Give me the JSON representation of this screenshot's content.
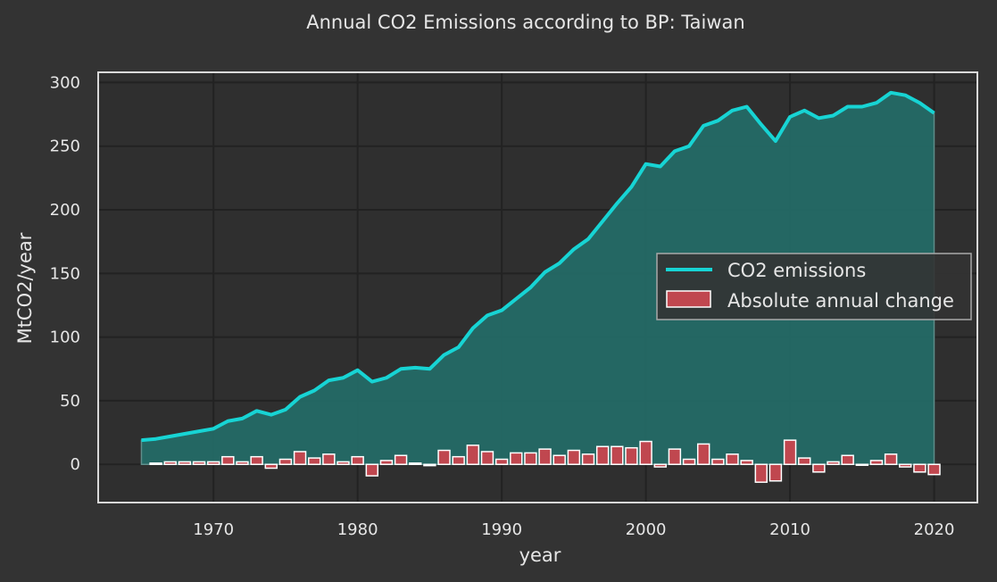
{
  "colors": {
    "background": "#333333",
    "plot_background": "#2f2f2f",
    "grid": "#222222",
    "frame": "#d9d9d9",
    "text": "#e6e6e6",
    "line": "#17d4d4",
    "area_fill": "#246a66",
    "bar_fill": "#c0474f",
    "bar_edge": "#ffffff"
  },
  "chart_data": {
    "type": "line",
    "title": "Annual CO2 Emissions according to BP: Taiwan",
    "xlabel": "year",
    "ylabel": "MtCO2/year",
    "xlim": [
      1962,
      2023
    ],
    "ylim": [
      -30,
      308
    ],
    "xticks": [
      1970,
      1980,
      1990,
      2000,
      2010,
      2020
    ],
    "yticks": [
      0,
      50,
      100,
      150,
      200,
      250,
      300
    ],
    "grid": true,
    "legend": {
      "position": "center-right",
      "entries": [
        "CO2 emissions",
        "Absolute annual change"
      ]
    },
    "x": [
      1965,
      1966,
      1967,
      1968,
      1969,
      1970,
      1971,
      1972,
      1973,
      1974,
      1975,
      1976,
      1977,
      1978,
      1979,
      1980,
      1981,
      1982,
      1983,
      1984,
      1985,
      1986,
      1987,
      1988,
      1989,
      1990,
      1991,
      1992,
      1993,
      1994,
      1995,
      1996,
      1997,
      1998,
      1999,
      2000,
      2001,
      2002,
      2003,
      2004,
      2005,
      2006,
      2007,
      2008,
      2009,
      2010,
      2011,
      2012,
      2013,
      2014,
      2015,
      2016,
      2017,
      2018,
      2019,
      2020
    ],
    "series": [
      {
        "name": "CO2 emissions",
        "type": "line",
        "filled": true,
        "values": [
          19,
          20,
          22,
          24,
          26,
          28,
          34,
          36,
          42,
          39,
          43,
          53,
          58,
          66,
          68,
          74,
          65,
          68,
          75,
          76,
          75,
          86,
          92,
          107,
          117,
          121,
          130,
          139,
          151,
          158,
          169,
          177,
          191,
          205,
          218,
          236,
          234,
          246,
          250,
          266,
          270,
          278,
          281,
          267,
          254,
          273,
          278,
          272,
          274,
          281,
          281,
          284,
          292,
          290,
          284,
          276
        ]
      },
      {
        "name": "Absolute annual change",
        "type": "bar",
        "values": [
          null,
          1,
          2,
          2,
          2,
          2,
          6,
          2,
          6,
          -3,
          4,
          10,
          5,
          8,
          2,
          6,
          -9,
          3,
          7,
          1,
          -1,
          11,
          6,
          15,
          10,
          4,
          9,
          9,
          12,
          7,
          11,
          8,
          14,
          14,
          13,
          18,
          -2,
          12,
          4,
          16,
          4,
          8,
          3,
          -14,
          -13,
          19,
          5,
          -6,
          2,
          7,
          0,
          3,
          8,
          -2,
          -6,
          -8
        ]
      }
    ]
  }
}
